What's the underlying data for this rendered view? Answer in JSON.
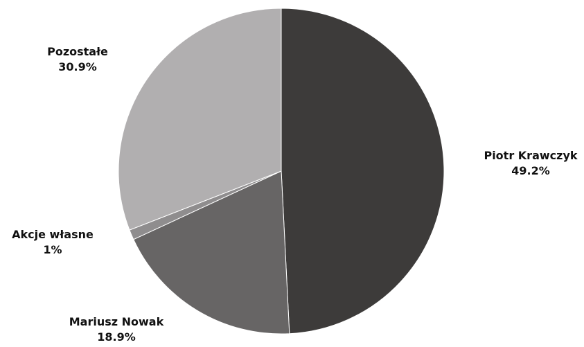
{
  "chart_data": {
    "type": "pie",
    "title": "",
    "slices": [
      {
        "label": "Piotr Krawczyk",
        "value": 49.2,
        "display": "49.2%",
        "color": "#3d3b3a"
      },
      {
        "label": "Mariusz Nowak",
        "value": 18.9,
        "display": "18.9%",
        "color": "#676565"
      },
      {
        "label": "Akcje własne",
        "value": 1,
        "display": "1%",
        "color": "#8f8d8e"
      },
      {
        "label": "Pozostałe",
        "value": 30.9,
        "display": "30.9%",
        "color": "#b1afb0"
      }
    ],
    "start_angle_deg": 0,
    "direction": "clockwise",
    "legend": "none",
    "labels": "outside"
  }
}
